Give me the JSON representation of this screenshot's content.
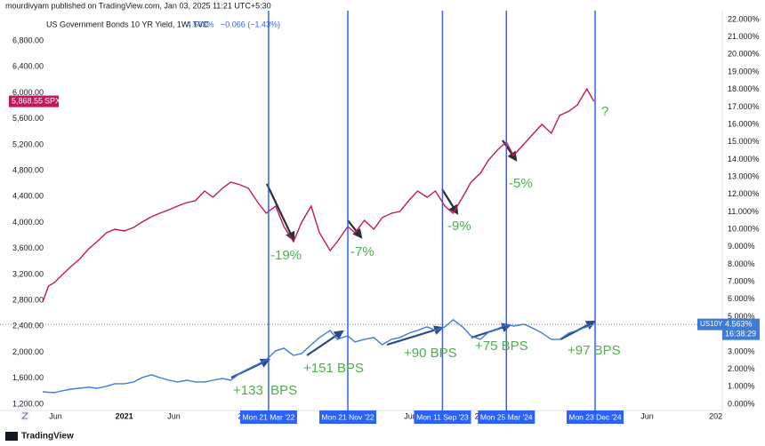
{
  "chart_data": {
    "type": "line",
    "header": "mourdivyam published on TradingView.com, Jan 03, 2025 11:21 UTC+5:30",
    "legend": {
      "title": "US Government Bonds 10 YR Yield, 1W, TVC",
      "value": "4.563%",
      "change": "−0.066 (−1.43%)"
    },
    "footer": "TradingView",
    "countdown": "16:38:29",
    "x": [
      2020.31,
      2020.36,
      2020.41,
      2020.47,
      2020.55,
      2020.62,
      2020.7,
      2020.77,
      2020.85,
      2020.92,
      2021.0,
      2021.08,
      2021.15,
      2021.23,
      2021.3,
      2021.38,
      2021.45,
      2021.53,
      2021.6,
      2021.68,
      2021.75,
      2021.83,
      2021.9,
      2021.98,
      2022.05,
      2022.13,
      2022.2,
      2022.28,
      2022.35,
      2022.43,
      2022.5,
      2022.58,
      2022.65,
      2022.74,
      2022.8,
      2022.89,
      2022.95,
      2023.03,
      2023.11,
      2023.18,
      2023.26,
      2023.33,
      2023.41,
      2023.48,
      2023.56,
      2023.63,
      2023.71,
      2023.78,
      2023.86,
      2023.93,
      2024.01,
      2024.08,
      2024.16,
      2024.23,
      2024.29,
      2024.38,
      2024.46,
      2024.53,
      2024.61,
      2024.68,
      2024.76,
      2024.83,
      2024.91,
      2024.97
    ],
    "series": [
      {
        "name": "SPX",
        "color": "#c2185b",
        "last_label": "5,868.55",
        "values": [
          2775,
          3021,
          3076,
          3186,
          3323,
          3432,
          3596,
          3706,
          3843,
          3898,
          3870,
          3925,
          4007,
          4089,
          4144,
          4199,
          4254,
          4309,
          4336,
          4487,
          4391,
          4528,
          4624,
          4582,
          4528,
          4309,
          4144,
          4254,
          3939,
          3706,
          4007,
          4254,
          3843,
          3569,
          3706,
          3939,
          3843,
          4035,
          3898,
          4076,
          4144,
          4172,
          4350,
          4487,
          4391,
          4487,
          4254,
          4144,
          4391,
          4624,
          4760,
          4966,
          5130,
          5240,
          5034,
          5212,
          5377,
          5514,
          5377,
          5651,
          5719,
          5815,
          6061,
          5868.55
        ]
      },
      {
        "name": "US10Y",
        "color": "#3d7bd9",
        "axis": "y2",
        "last_label": "4.563%",
        "values": [
          0.71,
          0.68,
          0.66,
          0.76,
          0.86,
          0.91,
          0.97,
          0.91,
          1.02,
          1.17,
          1.17,
          1.27,
          1.52,
          1.68,
          1.52,
          1.37,
          1.27,
          1.37,
          1.27,
          1.27,
          1.37,
          1.47,
          1.37,
          1.78,
          2.03,
          2.29,
          2.54,
          3.05,
          3.2,
          2.79,
          2.9,
          3.4,
          3.81,
          4.22,
          3.71,
          3.91,
          3.56,
          3.71,
          3.81,
          3.4,
          3.71,
          3.81,
          4.07,
          4.22,
          4.42,
          4.22,
          4.42,
          4.83,
          4.42,
          3.91,
          3.71,
          4.12,
          4.32,
          4.57,
          4.47,
          4.57,
          4.32,
          4.07,
          3.71,
          3.71,
          4.07,
          4.22,
          4.42,
          4.563
        ]
      }
    ],
    "xlim": [
      2019.95,
      2026.04
    ],
    "xticks": [
      {
        "value": 2020.42,
        "label": "Jun"
      },
      2021,
      {
        "value": 2021.42,
        "label": "Jun"
      },
      {
        "value": 2022,
        "label": "20"
      },
      {
        "value": 2023.42,
        "label": "Jun"
      },
      {
        "value": 2024,
        "label": "20"
      },
      {
        "value": 2025.42,
        "label": "Jun"
      },
      {
        "value": 2026,
        "label": "202"
      }
    ],
    "ylim": [
      1104,
      7294
    ],
    "yticks": [
      {
        "value": 1200,
        "label": "1,200.00"
      },
      {
        "value": 1600,
        "label": "1,600.00"
      },
      {
        "value": 2000,
        "label": "2,000.00"
      },
      {
        "value": 2400,
        "label": "2,400.00"
      },
      {
        "value": 2800,
        "label": "2,800.00"
      },
      {
        "value": 3200,
        "label": "3,200.00"
      },
      {
        "value": 3600,
        "label": "3,600.00"
      },
      {
        "value": 4000,
        "label": "4,000.00"
      },
      {
        "value": 4400,
        "label": "4,400.00"
      },
      {
        "value": 4800,
        "label": "4,800.00"
      },
      {
        "value": 5200,
        "label": "5,200.00"
      },
      {
        "value": 5600,
        "label": "5,600.00"
      },
      {
        "value": 6000,
        "label": "6,000.00"
      },
      {
        "value": 6400,
        "label": "6,400.00"
      },
      {
        "value": 6800,
        "label": "6,800.00"
      }
    ],
    "y2lim": [
      -0.36,
      22.61
    ],
    "y2ticks": [
      {
        "value": 0,
        "label": "0.000%"
      },
      {
        "value": 1,
        "label": "1.000%"
      },
      {
        "value": 2,
        "label": "2.000%"
      },
      {
        "value": 3,
        "label": "3.000%"
      },
      {
        "value": 4,
        "label": "4.000%"
      },
      {
        "value": 5,
        "label": "5.000%"
      },
      {
        "value": 6,
        "label": "6.000%"
      },
      {
        "value": 7,
        "label": "7.000%"
      },
      {
        "value": 8,
        "label": "8.000%"
      },
      {
        "value": 9,
        "label": "9.000%"
      },
      {
        "value": 10,
        "label": "10.000%"
      },
      {
        "value": 11,
        "label": "11.000%"
      },
      {
        "value": 12,
        "label": "12.000%"
      },
      {
        "value": 13,
        "label": "13.000%"
      },
      {
        "value": 14,
        "label": "14.000%"
      },
      {
        "value": 15,
        "label": "15.000%"
      },
      {
        "value": 16,
        "label": "16.000%"
      },
      {
        "value": 17,
        "label": "17.000%"
      },
      {
        "value": 18,
        "label": "18.000%"
      },
      {
        "value": 19,
        "label": "19.000%"
      },
      {
        "value": 20,
        "label": "20.000%"
      },
      {
        "value": 21,
        "label": "21.000%"
      },
      {
        "value": 22,
        "label": "22.000%"
      }
    ],
    "markers": [
      {
        "x": 2022.22,
        "label": "Mon 21 Mar '22"
      },
      {
        "x": 2022.89,
        "label": "Mon 21 Nov '22"
      },
      {
        "x": 2023.69,
        "label": "Mon 11 Sep '23"
      },
      {
        "x": 2024.23,
        "label": "Mon 25 Mar '24"
      },
      {
        "x": 2024.98,
        "label": "Mon 23 Dec '24"
      }
    ],
    "annotations": [
      "-19%",
      "-7%",
      "-9%",
      "-5%",
      "?",
      "+133  BPS",
      "+151 BPS",
      "+90 BPS",
      "+75 BPS",
      "+97 BPS"
    ]
  }
}
